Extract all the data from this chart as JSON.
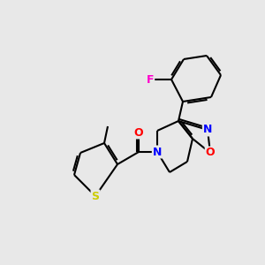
{
  "background_color": "#e8e8e8",
  "bond_color": "#000000",
  "atom_colors": {
    "N": "#0000ff",
    "O": "#ff0000",
    "S": "#cccc00",
    "F": "#ff00cc",
    "C": "#000000"
  },
  "figsize": [
    3.0,
    3.0
  ],
  "dpi": 100
}
